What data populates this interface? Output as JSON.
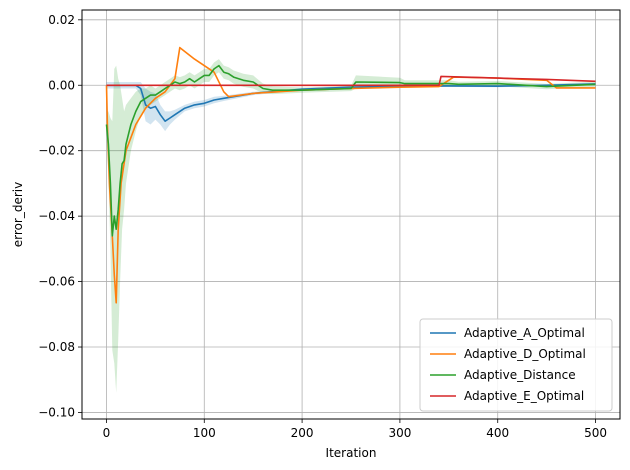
{
  "chart_data": {
    "type": "line",
    "title": "",
    "xlabel": "Iteration",
    "ylabel": "error_deriv",
    "xlim": [
      -25,
      525
    ],
    "ylim": [
      -0.102,
      0.023
    ],
    "xticks": [
      0,
      100,
      200,
      300,
      400,
      500
    ],
    "xtick_labels": [
      "0",
      "100",
      "200",
      "300",
      "400",
      "500"
    ],
    "yticks": [
      0.02,
      0.0,
      -0.02,
      -0.04,
      -0.06,
      -0.08,
      -0.1
    ],
    "ytick_labels": [
      "0.02",
      "0.00",
      "−0.02",
      "−0.04",
      "−0.06",
      "−0.08",
      "−0.10"
    ],
    "grid": true,
    "legend_position": "lower-right",
    "series": [
      {
        "name": "Adaptive_A_Optimal",
        "color": "#1f77b4",
        "x": [
          0,
          30,
          35,
          40,
          45,
          50,
          55,
          60,
          65,
          70,
          80,
          90,
          100,
          110,
          120,
          150,
          200,
          250,
          300,
          350,
          400,
          450,
          500
        ],
        "y": [
          0,
          0,
          -0.001,
          -0.006,
          -0.007,
          -0.0065,
          -0.009,
          -0.011,
          -0.01,
          -0.009,
          -0.007,
          -0.006,
          -0.0055,
          -0.0045,
          -0.004,
          -0.0025,
          -0.0012,
          -0.0006,
          -0.0003,
          -0.0002,
          -0.0003,
          0.0,
          0.0004
        ],
        "band": [
          0.001,
          0.001,
          0.002,
          0.005,
          0.005,
          0.004,
          0.003,
          0.003,
          0.002,
          0.0015,
          0.001,
          0.001,
          0.001,
          0.001,
          0.0008,
          0.0005,
          0.0003,
          0.0003,
          0.0003,
          0.0003,
          0.0003,
          0.0003,
          0.0003
        ]
      },
      {
        "name": "Adaptive_D_Optimal",
        "color": "#ff7f0e",
        "x": [
          0,
          1,
          3,
          6,
          8,
          10,
          12,
          15,
          20,
          30,
          40,
          50,
          60,
          70,
          75,
          90,
          110,
          120,
          125,
          150,
          200,
          250,
          300,
          340,
          355,
          400,
          450,
          460,
          500
        ],
        "y": [
          0,
          -0.012,
          -0.03,
          -0.046,
          -0.058,
          -0.0665,
          -0.044,
          -0.03,
          -0.02,
          -0.012,
          -0.007,
          -0.004,
          -0.002,
          0.002,
          0.0115,
          0.008,
          0.004,
          -0.002,
          -0.0035,
          -0.0025,
          -0.0015,
          -0.001,
          -0.0006,
          -0.0004,
          0.0025,
          0.0022,
          0.0015,
          -0.0008,
          -0.0008
        ]
      },
      {
        "name": "Adaptive_Distance",
        "color": "#2ca02c",
        "x": [
          0,
          2,
          4,
          6,
          8,
          10,
          12,
          14,
          16,
          18,
          20,
          25,
          30,
          35,
          40,
          45,
          50,
          55,
          60,
          65,
          70,
          75,
          80,
          85,
          90,
          95,
          100,
          105,
          110,
          115,
          120,
          125,
          130,
          140,
          150,
          160,
          170,
          200,
          250,
          255,
          300,
          305,
          350,
          360,
          400,
          450,
          500
        ],
        "y": [
          -0.012,
          -0.018,
          -0.03,
          -0.046,
          -0.04,
          -0.044,
          -0.038,
          -0.03,
          -0.024,
          -0.023,
          -0.018,
          -0.012,
          -0.008,
          -0.005,
          -0.004,
          -0.003,
          -0.003,
          -0.002,
          -0.001,
          0.0,
          0.001,
          0.0005,
          0.001,
          0.002,
          0.001,
          0.002,
          0.003,
          0.003,
          0.005,
          0.006,
          0.004,
          0.0035,
          0.0025,
          0.0015,
          0.001,
          -0.001,
          -0.0015,
          -0.0015,
          -0.001,
          0.001,
          0.0008,
          0.0005,
          0.0005,
          0.0003,
          0.0005,
          -0.0004,
          0.0003
        ],
        "band": [
          0.004,
          0.01,
          0.02,
          0.035,
          0.045,
          0.05,
          0.04,
          0.03,
          0.02,
          0.015,
          0.012,
          0.008,
          0.006,
          0.004,
          0.003,
          0.003,
          0.002,
          0.002,
          0.002,
          0.002,
          0.002,
          0.002,
          0.002,
          0.002,
          0.002,
          0.002,
          0.002,
          0.002,
          0.002,
          0.002,
          0.002,
          0.002,
          0.002,
          0.002,
          0.002,
          0.0015,
          0.0012,
          0.0008,
          0.0008,
          0.002,
          0.0015,
          0.001,
          0.001,
          0.0008,
          0.0008,
          0.0008,
          0.0008
        ]
      },
      {
        "name": "Adaptive_E_Optimal",
        "color": "#d62728",
        "x": [
          0,
          100,
          200,
          300,
          340,
          342,
          400,
          450,
          500
        ],
        "y": [
          0,
          0,
          0,
          0,
          0,
          0.0027,
          0.0022,
          0.0018,
          0.0012
        ]
      }
    ]
  }
}
